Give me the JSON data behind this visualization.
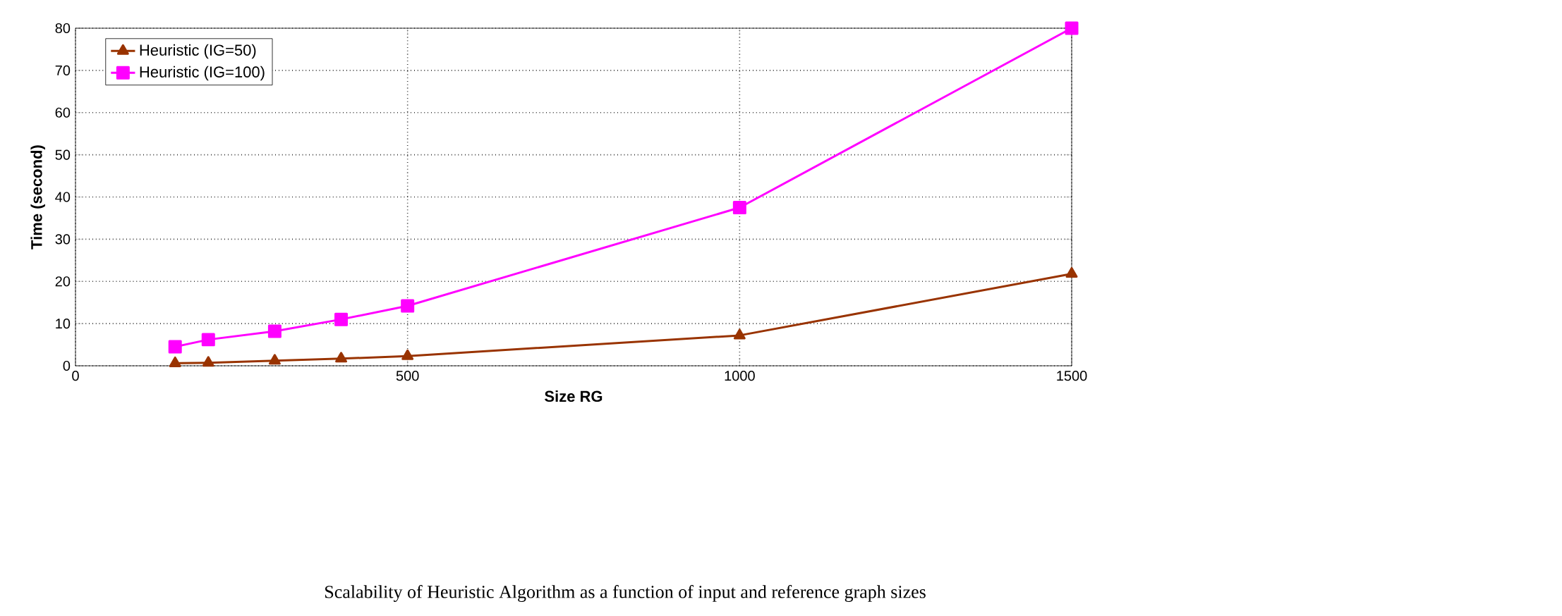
{
  "chart_data": {
    "type": "line",
    "title": "Scalability of Heuristic Algorithm as a function of input and reference graph sizes",
    "xlabel": "Size RG",
    "ylabel": "Time (second)",
    "x": [
      150,
      200,
      300,
      400,
      500,
      1000,
      1500
    ],
    "series": [
      {
        "name": "Heuristic (IG=50)",
        "color": "#993300",
        "marker": "triangle",
        "values": [
          0.6,
          0.7,
          1.2,
          1.7,
          2.3,
          7.2,
          21.8
        ]
      },
      {
        "name": "Heuristic (IG=100)",
        "color": "#ff00ff",
        "marker": "square",
        "values": [
          4.5,
          6.2,
          8.2,
          11,
          14.2,
          37.5,
          80
        ]
      }
    ],
    "xlim": [
      0,
      1500
    ],
    "ylim": [
      0,
      80
    ],
    "xticks": [
      0,
      500,
      1000,
      1500
    ],
    "yticks": [
      0,
      10,
      20,
      30,
      40,
      50,
      60,
      70,
      80
    ],
    "grid": true,
    "legend": "top left",
    "line_style": "solid"
  }
}
